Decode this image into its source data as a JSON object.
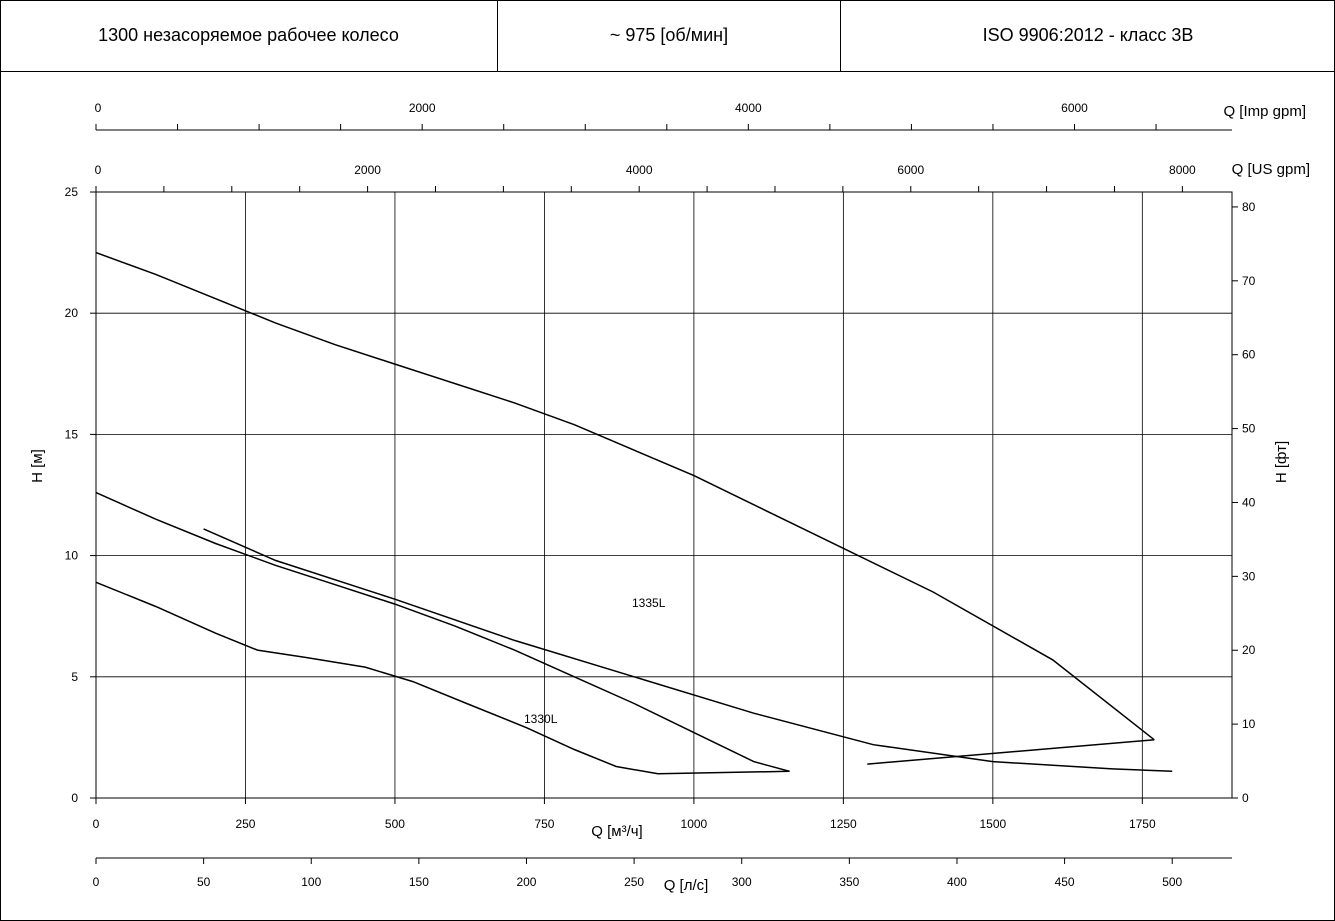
{
  "header": {
    "cells": [
      "1300 незасоряемое рабочее колесо",
      "~ 975 [об/мин]",
      "ISO 9906:2012 - класс 3B"
    ]
  },
  "chart_data": {
    "type": "line",
    "xlabel": "Q [м³/ч]",
    "ylabel": "H [м]",
    "ylabel_right": "H [фт]",
    "xlim": [
      0,
      1900
    ],
    "ylim": [
      0,
      25
    ],
    "grid": true,
    "x_ticks": [
      0,
      250,
      500,
      750,
      1000,
      1250,
      1500,
      1750
    ],
    "y_ticks": [
      0,
      5,
      10,
      15,
      20,
      25
    ],
    "right_axis": {
      "label": "H [фт]",
      "ticks": [
        0,
        10,
        20,
        30,
        40,
        50,
        60,
        70,
        80
      ]
    },
    "secondary_axes": [
      {
        "label": "Q [Imp gpm]",
        "ticks": [
          0,
          2000,
          4000,
          6000
        ]
      },
      {
        "label": "Q [US gpm]",
        "ticks": [
          0,
          2000,
          4000,
          6000,
          8000
        ]
      },
      {
        "label": "Q [л/с]",
        "ticks": [
          0,
          50,
          100,
          150,
          200,
          250,
          300,
          350,
          400,
          450,
          500
        ]
      }
    ],
    "series": [
      {
        "name": "1330L",
        "label_at": [
          1.42,
          3.3
        ],
        "x": [
          0,
          100,
          200,
          270,
          350,
          450,
          530,
          620,
          720,
          800,
          870,
          940
        ],
        "y": [
          8.9,
          7.9,
          6.8,
          6.1,
          5.8,
          5.4,
          4.8,
          3.9,
          2.9,
          2.0,
          1.3,
          1.0
        ]
      },
      {
        "name": "1335L",
        "label_at": [
          1.48,
          8.0
        ],
        "x": [
          0,
          100,
          200,
          300,
          400,
          500,
          600,
          700,
          800,
          900,
          1000,
          1100,
          1160
        ],
        "y": [
          12.6,
          11.5,
          10.5,
          9.6,
          8.8,
          8.0,
          7.1,
          6.1,
          5.0,
          3.9,
          2.7,
          1.5,
          1.1
        ]
      },
      {
        "x": [
          180,
          300,
          500,
          700,
          900,
          1100,
          1300,
          1500,
          1700,
          1800
        ],
        "y": [
          11.1,
          9.8,
          8.2,
          6.5,
          5.0,
          3.5,
          2.2,
          1.5,
          1.2,
          1.1
        ]
      },
      {
        "x": [
          0,
          100,
          200,
          300,
          400,
          500,
          600,
          700,
          800,
          1000,
          1200,
          1400,
          1600,
          1770
        ],
        "y": [
          22.5,
          21.6,
          20.6,
          19.6,
          18.7,
          17.9,
          17.1,
          16.3,
          15.4,
          13.3,
          10.9,
          8.5,
          5.7,
          2.4
        ]
      }
    ],
    "lower_pairs": [
      [
        940,
        1.0
      ],
      [
        1160,
        1.1
      ]
    ],
    "extra_lines": [
      {
        "x": [
          1290,
          1770
        ],
        "y": [
          1.4,
          2.4
        ]
      }
    ]
  }
}
